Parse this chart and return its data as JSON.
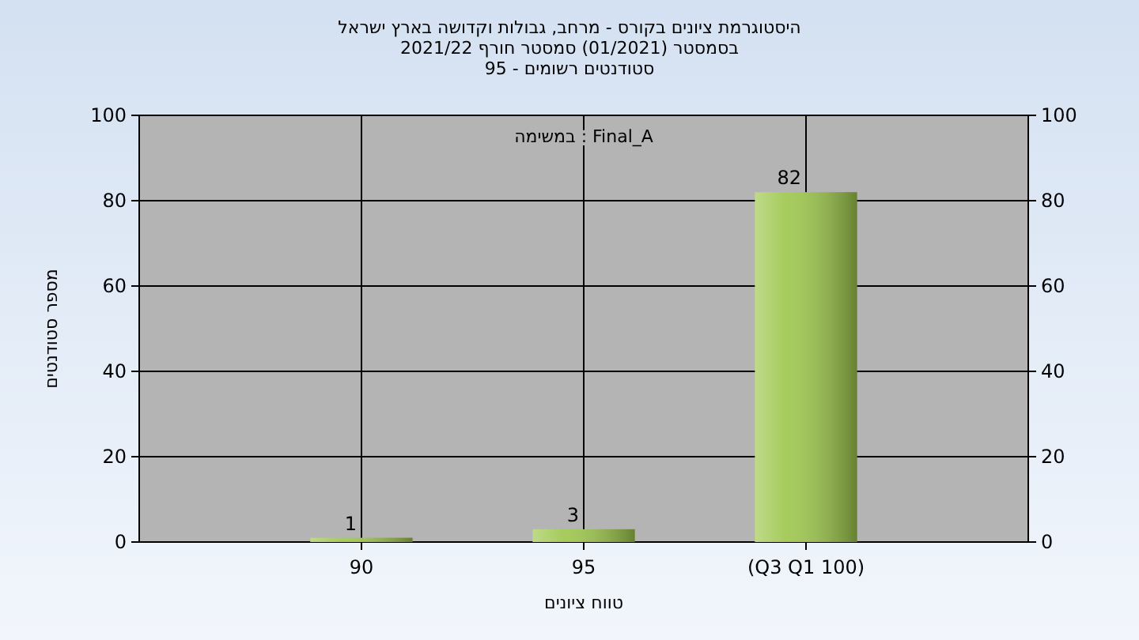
{
  "chart_data": {
    "type": "bar",
    "title": "היסטוגרמת ציונים בקורס - מרחב, גבולות וקדושה בארץ ישראל",
    "subtitle": "בסמסטר (01/2021) סמסטר חורף 2021/22\nסטודנטים רשומים - 95",
    "xlabel": "טווח ציונים",
    "ylabel": "מספר סטודנטים",
    "annotations": [
      "במשימה : Final_A"
    ],
    "categories": [
      "90",
      "95",
      "(Q3 Q1 100)"
    ],
    "values": [
      1,
      3,
      82
    ],
    "color": "#9cc64a",
    "ylim": [
      0,
      100
    ],
    "yticks": [
      0,
      20,
      40,
      60,
      80,
      100
    ],
    "y2lim": [
      0,
      100
    ],
    "y2ticks": [
      0,
      20,
      40,
      60,
      80,
      100
    ],
    "grid": true,
    "data_labels": true
  }
}
